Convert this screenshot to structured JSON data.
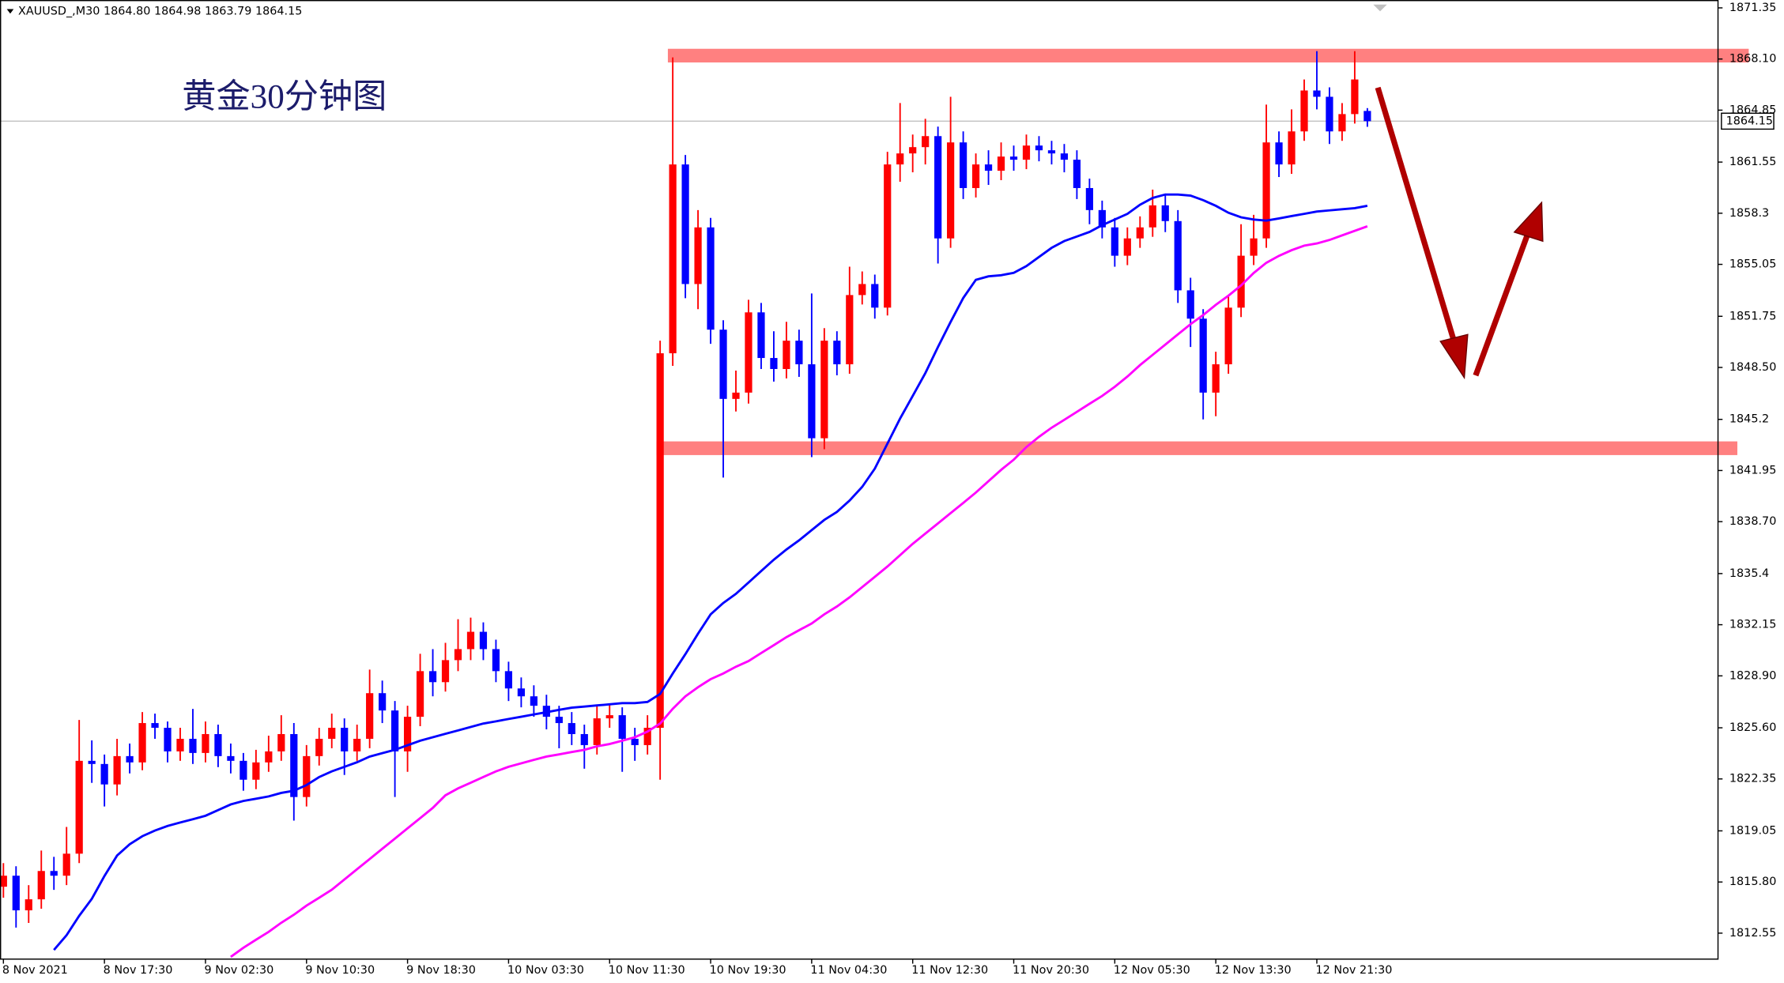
{
  "chart_data": {
    "type": "candlestick",
    "header": "XAUUSD_,M30  1864.80 1864.98 1863.79 1864.15",
    "annotation": "黄金30分钟图",
    "categories": [
      "8 Nov 2021",
      null,
      null,
      null,
      null,
      null,
      null,
      null,
      "8 Nov 17:30",
      null,
      null,
      null,
      null,
      null,
      null,
      null,
      "9 Nov 02:30",
      null,
      null,
      null,
      null,
      null,
      null,
      null,
      "9 Nov 10:30",
      null,
      null,
      null,
      null,
      null,
      null,
      null,
      "9 Nov 18:30",
      null,
      null,
      null,
      null,
      null,
      null,
      null,
      "10 Nov 03:30",
      null,
      null,
      null,
      null,
      null,
      null,
      null,
      "10 Nov 11:30",
      null,
      null,
      null,
      null,
      null,
      null,
      null,
      "10 Nov 19:30",
      null,
      null,
      null,
      null,
      null,
      null,
      null,
      "11 Nov 04:30",
      null,
      null,
      null,
      null,
      null,
      null,
      null,
      "11 Nov 12:30",
      null,
      null,
      null,
      null,
      null,
      null,
      null,
      "11 Nov 20:30",
      null,
      null,
      null,
      null,
      null,
      null,
      null,
      "12 Nov 05:30",
      null,
      null,
      null,
      null,
      null,
      null,
      null,
      "12 Nov 13:30",
      null,
      null,
      null,
      null,
      null,
      null,
      null,
      "12 Nov 21:30",
      null,
      null,
      null,
      null
    ],
    "open": [
      1815.5,
      1816.2,
      1814.0,
      1814.7,
      1816.5,
      1816.2,
      1817.6,
      1823.5,
      1823.3,
      1822.0,
      1823.8,
      1823.4,
      1825.9,
      1825.6,
      1824.1,
      1824.9,
      1824.0,
      1825.2,
      1823.8,
      1823.5,
      1822.3,
      1823.4,
      1824.1,
      1825.2,
      1821.2,
      1823.8,
      1824.9,
      1825.6,
      1824.1,
      1824.9,
      1827.8,
      1826.7,
      1824.1,
      1826.3,
      1829.2,
      1828.5,
      1829.9,
      1830.6,
      1831.7,
      1830.6,
      1829.2,
      1828.1,
      1827.6,
      1827.0,
      1826.3,
      1825.9,
      1825.2,
      1824.5,
      1826.2,
      1826.4,
      1824.9,
      1824.5,
      1825.6,
      1849.4,
      1861.4,
      1853.8,
      1857.4,
      1850.9,
      1846.5,
      1846.9,
      1852.0,
      1849.1,
      1848.4,
      1850.2,
      1848.7,
      1844.0,
      1850.2,
      1848.7,
      1853.1,
      1853.8,
      1852.3,
      1861.4,
      1862.1,
      1862.5,
      1863.2,
      1856.7,
      1862.8,
      1859.9,
      1861.4,
      1861.0,
      1861.9,
      1861.7,
      1862.6,
      1862.3,
      1862.1,
      1861.7,
      1859.9,
      1858.5,
      1857.4,
      1855.6,
      1856.7,
      1857.4,
      1858.8,
      1857.8,
      1853.4,
      1851.6,
      1846.9,
      1848.7,
      1852.3,
      1855.6,
      1856.7,
      1862.8,
      1861.4,
      1863.5,
      1866.1,
      1865.7,
      1863.5,
      1864.6,
      1864.8
    ],
    "high": [
      1817.0,
      1816.8,
      1815.6,
      1817.8,
      1817.4,
      1819.3,
      1826.1,
      1824.8,
      1823.9,
      1824.9,
      1824.6,
      1826.6,
      1826.5,
      1826.0,
      1825.6,
      1826.8,
      1826.0,
      1825.8,
      1824.6,
      1824.0,
      1824.2,
      1825.1,
      1826.4,
      1825.9,
      1824.5,
      1825.6,
      1826.5,
      1826.2,
      1825.8,
      1829.3,
      1828.6,
      1827.3,
      1827.0,
      1830.3,
      1830.6,
      1831.0,
      1832.5,
      1832.6,
      1832.3,
      1831.2,
      1829.8,
      1828.8,
      1828.3,
      1827.7,
      1827.0,
      1826.6,
      1825.8,
      1827.0,
      1827.1,
      1826.9,
      1825.6,
      1826.4,
      1850.2,
      1868.2,
      1862.0,
      1858.5,
      1858.0,
      1851.5,
      1848.3,
      1852.8,
      1852.6,
      1850.8,
      1851.4,
      1850.9,
      1853.2,
      1851.0,
      1850.8,
      1854.9,
      1854.6,
      1854.4,
      1862.2,
      1865.3,
      1863.3,
      1864.3,
      1863.8,
      1865.7,
      1863.5,
      1862.1,
      1862.3,
      1862.8,
      1862.6,
      1863.3,
      1863.2,
      1862.9,
      1862.7,
      1862.3,
      1860.5,
      1859.1,
      1858.0,
      1857.4,
      1858.1,
      1859.8,
      1859.5,
      1858.5,
      1854.2,
      1852.2,
      1849.5,
      1853.0,
      1857.6,
      1858.2,
      1865.2,
      1863.5,
      1864.9,
      1866.8,
      1868.6,
      1866.3,
      1865.3,
      1868.6,
      1864.98
    ],
    "low": [
      1814.8,
      1812.9,
      1813.2,
      1814.1,
      1815.3,
      1815.6,
      1817.0,
      1822.1,
      1820.6,
      1821.3,
      1822.7,
      1822.9,
      1824.9,
      1823.4,
      1823.5,
      1823.3,
      1823.4,
      1823.1,
      1822.7,
      1821.6,
      1821.7,
      1822.8,
      1823.5,
      1819.7,
      1820.6,
      1823.2,
      1824.3,
      1822.6,
      1823.5,
      1824.3,
      1825.9,
      1821.2,
      1822.8,
      1825.7,
      1827.6,
      1827.9,
      1829.2,
      1829.9,
      1829.9,
      1828.5,
      1827.3,
      1826.9,
      1826.3,
      1825.5,
      1824.3,
      1824.5,
      1823.0,
      1823.9,
      1825.6,
      1822.8,
      1823.5,
      1823.9,
      1822.3,
      1848.6,
      1852.9,
      1852.2,
      1850.0,
      1841.5,
      1845.7,
      1846.2,
      1848.4,
      1847.6,
      1847.8,
      1847.9,
      1842.8,
      1843.3,
      1848.0,
      1848.1,
      1852.5,
      1851.6,
      1851.8,
      1860.3,
      1860.9,
      1861.4,
      1855.1,
      1856.1,
      1859.2,
      1859.3,
      1860.1,
      1860.4,
      1861.0,
      1861.1,
      1861.6,
      1861.4,
      1860.9,
      1859.2,
      1857.6,
      1856.7,
      1854.9,
      1855.0,
      1856.1,
      1856.8,
      1857.1,
      1852.6,
      1849.8,
      1845.2,
      1845.4,
      1848.1,
      1851.7,
      1855.0,
      1856.1,
      1860.6,
      1860.8,
      1862.9,
      1864.9,
      1862.7,
      1862.9,
      1864.0,
      1863.79
    ],
    "close": [
      1816.2,
      1814.0,
      1814.7,
      1816.5,
      1816.2,
      1817.6,
      1823.5,
      1823.3,
      1822.0,
      1823.8,
      1823.4,
      1825.9,
      1825.6,
      1824.1,
      1824.9,
      1824.0,
      1825.2,
      1823.8,
      1823.5,
      1822.3,
      1823.4,
      1824.1,
      1825.2,
      1821.2,
      1823.8,
      1824.9,
      1825.6,
      1824.1,
      1824.9,
      1827.8,
      1826.7,
      1824.1,
      1826.3,
      1829.2,
      1828.5,
      1829.9,
      1830.6,
      1831.7,
      1830.6,
      1829.2,
      1828.1,
      1827.6,
      1827.0,
      1826.3,
      1825.9,
      1825.2,
      1824.5,
      1826.2,
      1826.4,
      1824.9,
      1824.5,
      1825.6,
      1849.4,
      1861.4,
      1853.8,
      1857.4,
      1850.9,
      1846.5,
      1846.9,
      1852.0,
      1849.1,
      1848.4,
      1850.2,
      1848.7,
      1844.0,
      1850.2,
      1848.7,
      1853.1,
      1853.8,
      1852.3,
      1861.4,
      1862.1,
      1862.5,
      1863.2,
      1856.7,
      1862.8,
      1859.9,
      1861.4,
      1861.0,
      1861.9,
      1861.7,
      1862.6,
      1862.3,
      1862.1,
      1861.7,
      1859.9,
      1858.5,
      1857.4,
      1855.6,
      1856.7,
      1857.4,
      1858.8,
      1857.8,
      1853.4,
      1851.6,
      1846.9,
      1848.7,
      1852.3,
      1855.6,
      1856.7,
      1862.8,
      1861.4,
      1863.5,
      1866.1,
      1865.7,
      1863.5,
      1864.6,
      1866.8,
      1864.15
    ],
    "up_color": "#ff0000",
    "down_color": "#0000ff",
    "lines": [
      {
        "color": "#0000ff",
        "values": [
          null,
          null,
          null,
          null,
          1811.48,
          1812.42,
          1813.65,
          1814.73,
          1816.18,
          1817.48,
          1818.2,
          1818.71,
          1819.07,
          1819.36,
          1819.58,
          1819.79,
          1820.01,
          1820.37,
          1820.73,
          1820.95,
          1821.09,
          1821.24,
          1821.46,
          1821.6,
          1821.96,
          1822.47,
          1822.83,
          1823.12,
          1823.41,
          1823.77,
          1823.99,
          1824.2,
          1824.49,
          1824.78,
          1825.0,
          1825.22,
          1825.43,
          1825.65,
          1825.87,
          1826.01,
          1826.16,
          1826.3,
          1826.45,
          1826.59,
          1826.74,
          1826.88,
          1826.95,
          1827.02,
          1827.09,
          1827.17,
          1827.17,
          1827.24,
          1827.75,
          1829.05,
          1830.28,
          1831.58,
          1832.81,
          1833.53,
          1834.11,
          1834.83,
          1835.56,
          1836.28,
          1836.93,
          1837.51,
          1838.16,
          1838.81,
          1839.32,
          1840.04,
          1840.91,
          1842.07,
          1843.66,
          1845.25,
          1846.69,
          1848.14,
          1849.8,
          1851.39,
          1852.91,
          1854.07,
          1854.29,
          1854.36,
          1854.51,
          1854.94,
          1855.52,
          1856.1,
          1856.53,
          1856.82,
          1857.11,
          1857.54,
          1857.9,
          1858.26,
          1858.84,
          1859.27,
          1859.49,
          1859.49,
          1859.42,
          1859.13,
          1858.77,
          1858.33,
          1858.04,
          1857.9,
          1857.83,
          1857.97,
          1858.12,
          1858.26,
          1858.41,
          1858.48,
          1858.55,
          1858.62,
          1858.77
        ]
      },
      {
        "color": "#ff00ff",
        "values": [
          null,
          null,
          null,
          null,
          null,
          null,
          null,
          null,
          null,
          null,
          null,
          null,
          null,
          null,
          null,
          null,
          null,
          null,
          1811.04,
          1811.62,
          1812.13,
          1812.63,
          1813.21,
          1813.72,
          1814.3,
          1814.8,
          1815.31,
          1815.96,
          1816.61,
          1817.26,
          1817.91,
          1818.56,
          1819.21,
          1819.86,
          1820.51,
          1821.31,
          1821.75,
          1822.11,
          1822.47,
          1822.83,
          1823.12,
          1823.34,
          1823.56,
          1823.77,
          1823.91,
          1824.06,
          1824.2,
          1824.42,
          1824.57,
          1824.78,
          1825.0,
          1825.36,
          1825.87,
          1826.81,
          1827.6,
          1828.18,
          1828.69,
          1829.05,
          1829.48,
          1829.84,
          1830.35,
          1830.85,
          1831.36,
          1831.8,
          1832.23,
          1832.81,
          1833.31,
          1833.89,
          1834.54,
          1835.19,
          1835.85,
          1836.57,
          1837.29,
          1837.94,
          1838.59,
          1839.24,
          1839.89,
          1840.55,
          1841.27,
          1841.99,
          1842.64,
          1843.44,
          1844.09,
          1844.67,
          1845.17,
          1845.68,
          1846.19,
          1846.69,
          1847.27,
          1847.92,
          1848.65,
          1849.3,
          1849.95,
          1850.6,
          1851.25,
          1851.83,
          1852.48,
          1853.06,
          1853.71,
          1854.5,
          1855.15,
          1855.59,
          1855.95,
          1856.24,
          1856.38,
          1856.6,
          1856.89,
          1857.18,
          1857.47
        ]
      }
    ],
    "zones": [
      {
        "low": 1867.88,
        "high": 1868.75,
        "color": "#ff8080"
      },
      {
        "low": 1842.93,
        "high": 1843.8,
        "color": "#ff8080"
      }
    ],
    "ylim": [
      1810.9,
      1871.85
    ],
    "yticks": [
      1812.55,
      {
        "value": 1815.8,
        "label": "1815.80"
      },
      1819.05,
      1822.35,
      {
        "value": 1825.6,
        "label": "1825.60"
      },
      {
        "value": 1828.9,
        "label": "1828.90"
      },
      1832.15,
      1835.4,
      {
        "value": 1838.7,
        "label": "1838.70"
      },
      1841.95,
      1845.2,
      {
        "value": 1848.5,
        "label": "1848.50"
      },
      1851.75,
      1855.05,
      1858.3,
      1861.55,
      1864.85,
      {
        "value": 1868.1,
        "label": "1868.10"
      },
      1871.35
    ]
  }
}
